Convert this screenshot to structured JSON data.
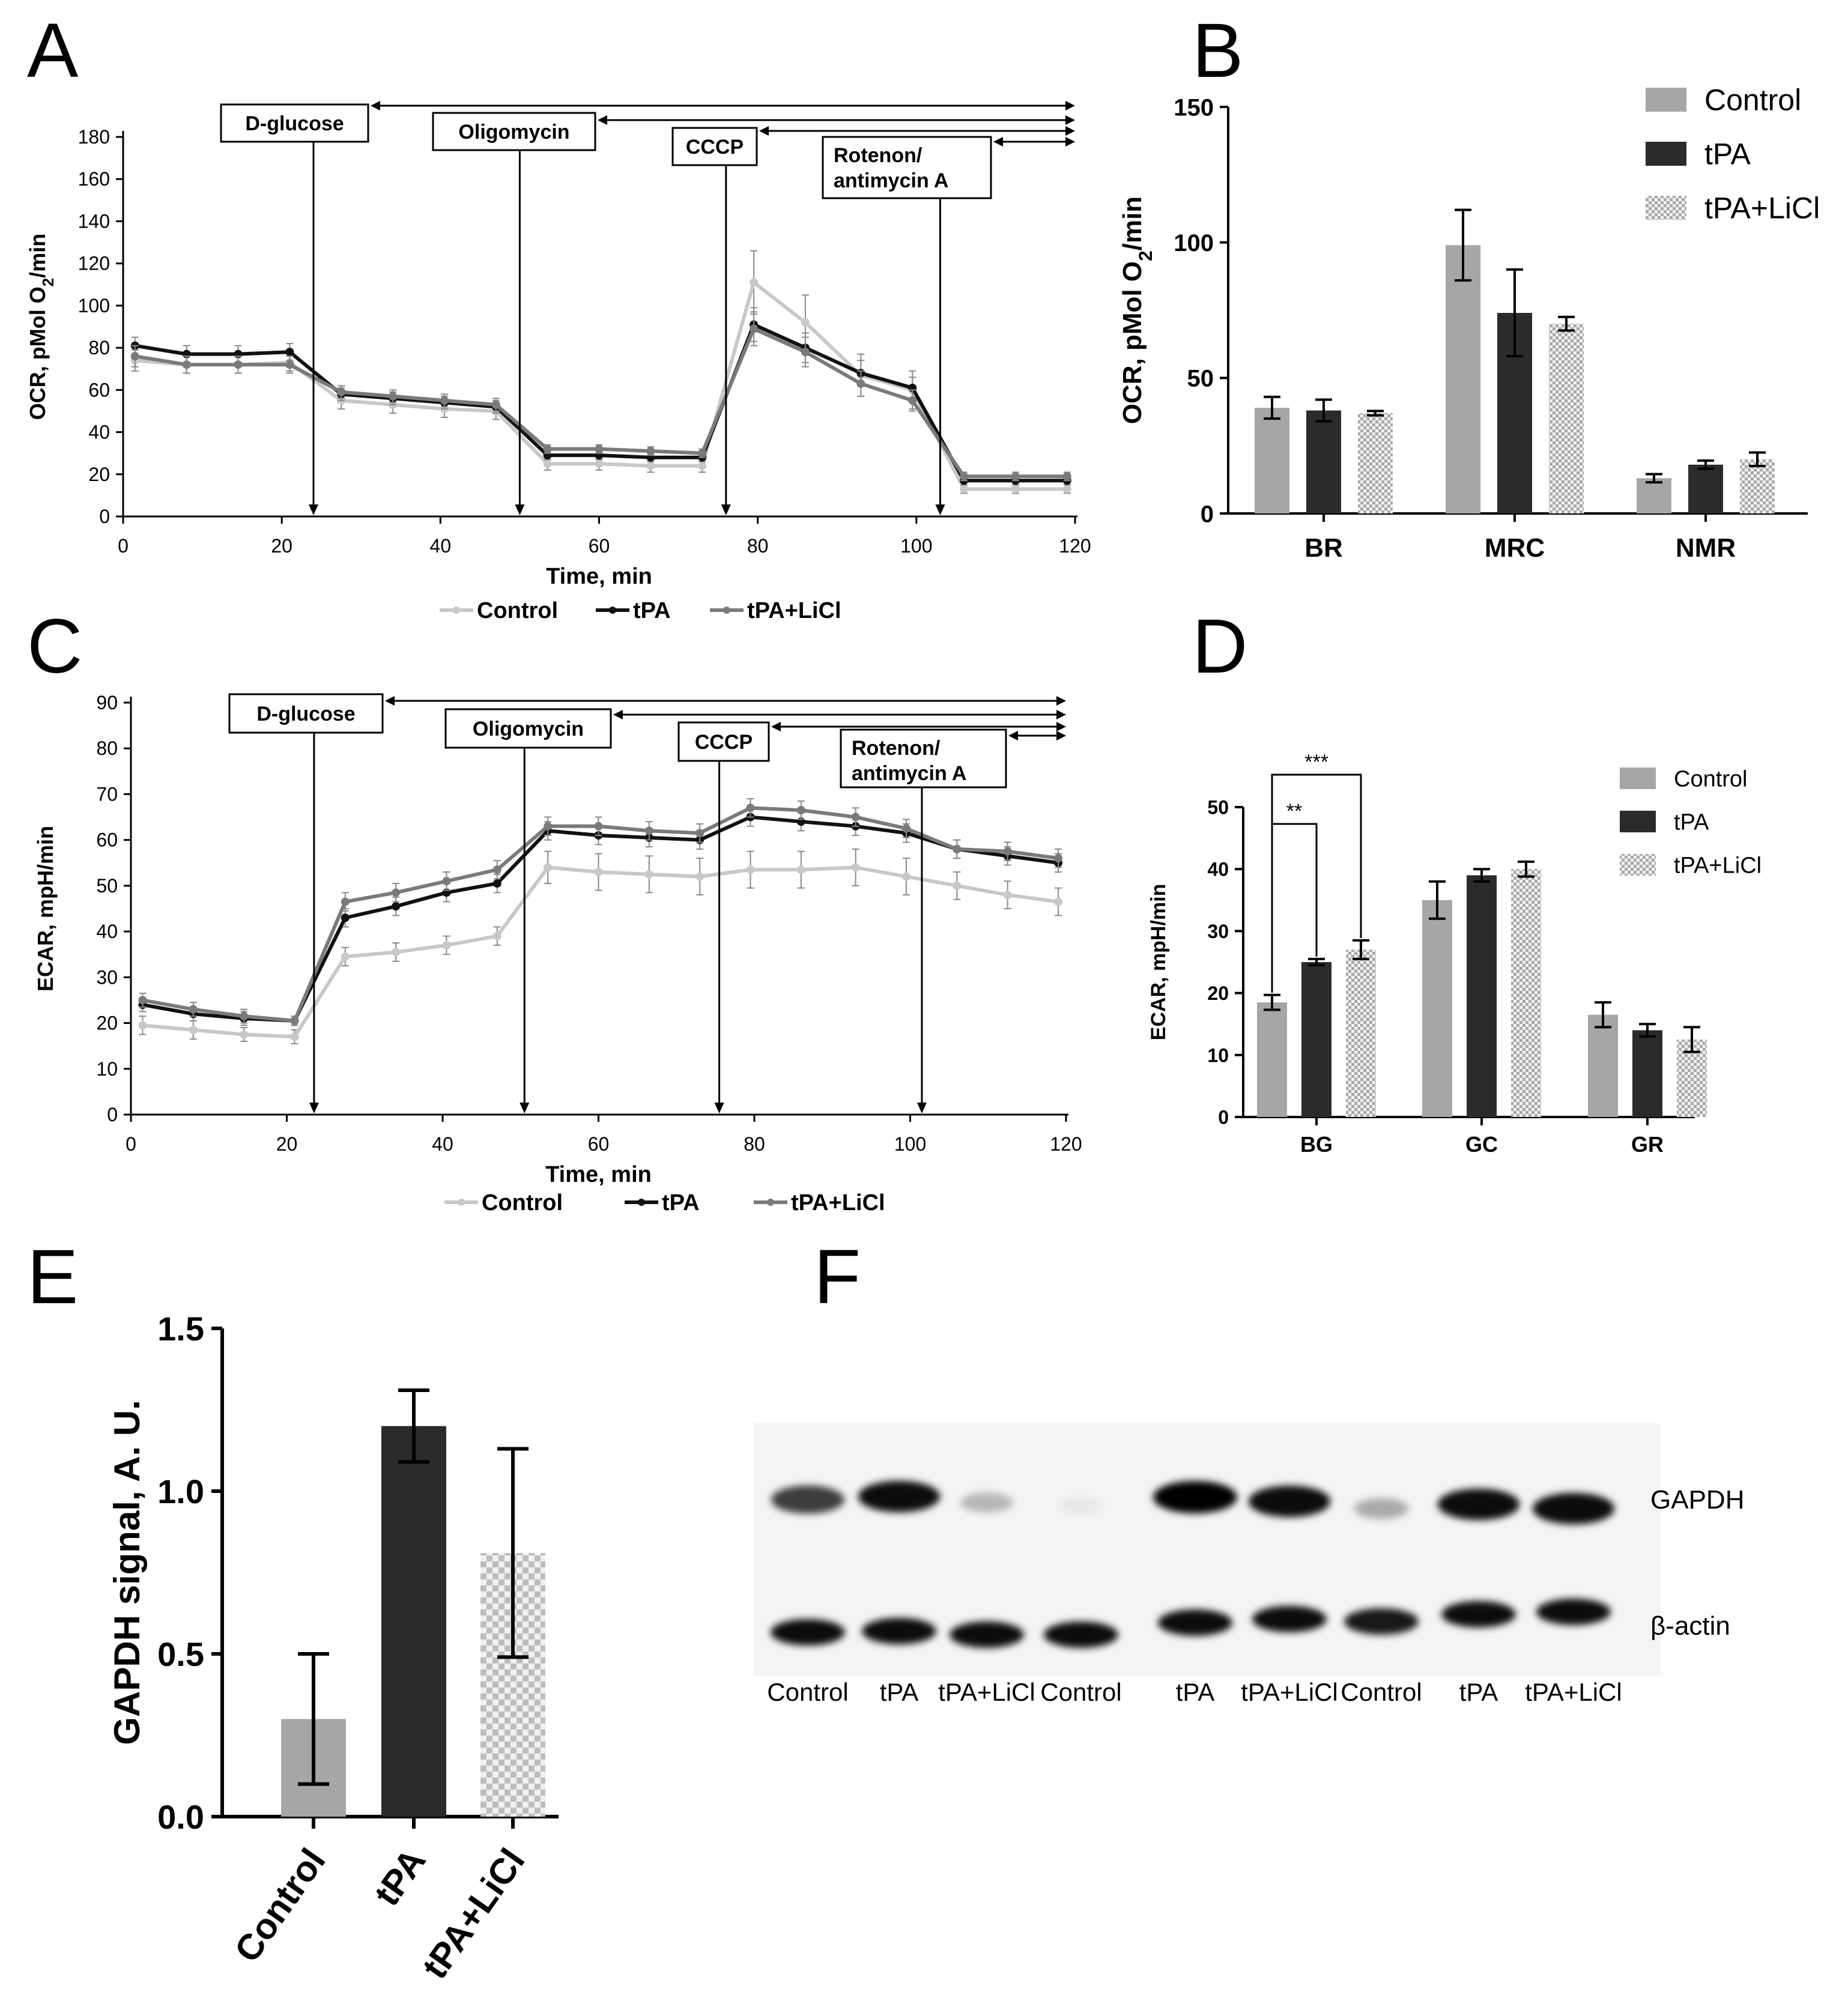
{
  "colors": {
    "control": "#c8c8c8",
    "tpa": "#111111",
    "tpa_licl": "#7a7a7a",
    "bar_control": "#a6a6a6",
    "bar_tpa": "#2b2b2b",
    "check_light": "#f2f2f2",
    "check_dark": "#a9a9a9",
    "blot_bg": "#f4f4f4"
  },
  "chart_data": [
    {
      "panel": "A",
      "panel_label": "A",
      "type": "line",
      "xlabel": "Time, min",
      "ylabel": "OCR, pMol O2/min",
      "ylabel_main": "OCR, pMol O",
      "ylabel_sub": "2",
      "ylabel_tail": "/min",
      "xlim": [
        0,
        120
      ],
      "ylim": [
        0,
        180
      ],
      "xticks": [
        0,
        20,
        40,
        60,
        80,
        100,
        120
      ],
      "yticks": [
        0,
        20,
        40,
        60,
        80,
        100,
        120,
        140,
        160,
        180
      ],
      "x": [
        1.5,
        8,
        14.5,
        21,
        27.5,
        34,
        40.5,
        47,
        53.5,
        60,
        66.5,
        73,
        79.5,
        86,
        93,
        99.5,
        106,
        112.5,
        119
      ],
      "series": [
        {
          "name": "Control",
          "key": "control",
          "values": [
            74,
            72,
            72,
            73,
            55,
            53,
            51,
            50,
            25,
            25,
            24,
            24,
            111,
            92,
            67,
            60,
            13,
            13,
            13
          ],
          "errors": [
            5,
            4,
            4,
            4,
            4,
            4,
            4,
            4,
            3,
            3,
            3,
            3,
            15,
            13,
            10,
            9,
            2,
            2,
            2
          ]
        },
        {
          "name": "tPA",
          "key": "tpa",
          "values": [
            81,
            77,
            77,
            78,
            58,
            56,
            54,
            52,
            29,
            29,
            28,
            28,
            91,
            80,
            68,
            61,
            17,
            17,
            17
          ],
          "errors": [
            4,
            4,
            4,
            4,
            3,
            3,
            3,
            3,
            2,
            2,
            2,
            2,
            8,
            7,
            6,
            5,
            2,
            2,
            2
          ]
        },
        {
          "name": "tPA+LiCl",
          "key": "tpa_licl",
          "values": [
            76,
            72,
            72,
            72,
            59,
            57,
            55,
            53,
            32,
            32,
            31,
            30,
            89,
            78,
            63,
            55,
            19,
            19,
            19
          ],
          "errors": [
            5,
            4,
            4,
            4,
            3,
            3,
            3,
            3,
            2,
            2,
            2,
            2,
            8,
            7,
            6,
            5,
            2,
            2,
            2
          ]
        }
      ],
      "injections": [
        {
          "label": "D-glucose",
          "label2": "",
          "time": 24
        },
        {
          "label": "Oligomycin",
          "label2": "",
          "time": 50
        },
        {
          "label": "CCCP",
          "label2": "",
          "time": 76
        },
        {
          "label": "Rotenon/",
          "label2": "antimycin A",
          "time": 103
        }
      ],
      "legend": [
        "Control",
        "tPA",
        "tPA+LiCl"
      ]
    },
    {
      "panel": "B",
      "panel_label": "B",
      "type": "bar",
      "ylabel": "OCR, pMol O2/min",
      "ylabel_main": "OCR, pMol O",
      "ylabel_sub": "2",
      "ylabel_tail": "/min",
      "ylim": [
        0,
        150
      ],
      "yticks": [
        0,
        50,
        100,
        150
      ],
      "categories": [
        "BR",
        "MRC",
        "NMR"
      ],
      "series": [
        {
          "name": "Control",
          "key": "control",
          "values": [
            39,
            99,
            13
          ],
          "errors": [
            4,
            13,
            1.5
          ]
        },
        {
          "name": "tPA",
          "key": "tpa",
          "values": [
            38,
            74,
            18
          ],
          "errors": [
            4,
            16,
            1.5
          ]
        },
        {
          "name": "tPA+LiCl",
          "key": "tpa_licl",
          "values": [
            37,
            70,
            20
          ],
          "errors": [
            0.8,
            2.5,
            2.5
          ]
        }
      ],
      "legend": [
        "Control",
        "tPA",
        "tPA+LiCl"
      ]
    },
    {
      "panel": "C",
      "panel_label": "C",
      "type": "line",
      "xlabel": "Time, min",
      "ylabel": "ECAR, mpH/min",
      "xlim": [
        0,
        120
      ],
      "ylim": [
        0,
        90
      ],
      "xticks": [
        0,
        20,
        40,
        60,
        80,
        100,
        120
      ],
      "yticks": [
        0,
        10,
        20,
        30,
        40,
        50,
        60,
        70,
        80,
        90
      ],
      "x": [
        1.5,
        8,
        14.5,
        21,
        27.5,
        34,
        40.5,
        47,
        53.5,
        60,
        66.5,
        73,
        79.5,
        86,
        93,
        99.5,
        106,
        112.5,
        119
      ],
      "series": [
        {
          "name": "Control",
          "key": "control",
          "values": [
            19.5,
            18.5,
            17.5,
            17,
            34.5,
            35.5,
            37,
            39,
            54,
            53,
            52.5,
            52,
            53.5,
            53.5,
            54,
            52,
            50,
            48,
            46.5
          ],
          "errors": [
            2,
            2,
            1.5,
            1.5,
            2,
            2,
            2,
            2,
            3.5,
            4,
            4,
            4,
            4,
            4,
            4,
            4,
            3,
            3,
            3
          ]
        },
        {
          "name": "tPA",
          "key": "tpa",
          "values": [
            24,
            22,
            21,
            20.5,
            43,
            45.5,
            48.5,
            50.5,
            62,
            61,
            60.5,
            60,
            65,
            64,
            63,
            61.5,
            58,
            56.5,
            55
          ],
          "errors": [
            1.5,
            1.5,
            1.5,
            1,
            2,
            2,
            2,
            2,
            2,
            2,
            2,
            2,
            2,
            2,
            2,
            2,
            2,
            2,
            2
          ]
        },
        {
          "name": "tPA+LiCl",
          "key": "tpa_licl",
          "values": [
            25,
            23,
            21.5,
            20.5,
            46.5,
            48.5,
            51,
            53.5,
            63,
            63,
            62,
            61.5,
            67,
            66.5,
            65,
            62.5,
            58,
            57.5,
            56
          ],
          "errors": [
            1.5,
            1.5,
            1.5,
            1,
            2,
            2,
            2,
            2,
            2,
            2,
            2,
            2,
            2,
            2,
            2,
            2,
            2,
            2,
            2
          ]
        }
      ],
      "injections": [
        {
          "label": "D-glucose",
          "label2": "",
          "time": 23.5
        },
        {
          "label": "Oligomycin",
          "label2": "",
          "time": 50.5
        },
        {
          "label": "CCCP",
          "label2": "",
          "time": 75.5
        },
        {
          "label": "Rotenon/",
          "label2": "antimycin A",
          "time": 101.5
        }
      ],
      "legend": [
        "Control",
        "tPA",
        "tPA+LiCl"
      ]
    },
    {
      "panel": "D",
      "panel_label": "D",
      "type": "bar",
      "ylabel": "ECAR, mpH/min",
      "ylim": [
        0,
        50
      ],
      "yticks": [
        0,
        10,
        20,
        30,
        40,
        50
      ],
      "categories": [
        "BG",
        "GC",
        "GR"
      ],
      "series": [
        {
          "name": "Control",
          "key": "control",
          "values": [
            18.5,
            35,
            16.5
          ],
          "errors": [
            1.2,
            3,
            2
          ]
        },
        {
          "name": "tPA",
          "key": "tpa",
          "values": [
            25,
            39,
            14
          ],
          "errors": [
            0.5,
            1,
            1
          ]
        },
        {
          "name": "tPA+LiCl",
          "key": "tpa_licl",
          "values": [
            27,
            40,
            12.5
          ],
          "errors": [
            1.5,
            1.2,
            2
          ]
        }
      ],
      "significance": [
        {
          "label": "**",
          "from": "Control",
          "to": "tPA",
          "category": "BG"
        },
        {
          "label": "***",
          "from": "Control",
          "to": "tPA+LiCl",
          "category": "BG"
        }
      ],
      "legend": [
        "Control",
        "tPA",
        "tPA+LiCl"
      ]
    },
    {
      "panel": "E",
      "panel_label": "E",
      "type": "bar",
      "ylabel": "GAPDH signal, A. U.",
      "ylim": [
        0,
        1.5
      ],
      "yticks": [
        "0.0",
        "0.5",
        "1.0",
        "1.5"
      ],
      "categories": [
        "Control",
        "tPA",
        "tPA+LiCl"
      ],
      "series": [
        {
          "name": "GAPDH",
          "values": [
            0.3,
            1.2,
            0.81
          ],
          "errors": [
            0.2,
            0.11,
            0.32
          ]
        }
      ]
    }
  ],
  "blot": {
    "panel_label": "F",
    "rows": [
      "GAPDH",
      "β-actin"
    ],
    "lanes": [
      "Control",
      "tPA",
      "tPA+LiCl",
      "Control",
      "tPA",
      "tPA+LiCl",
      "Control",
      "tPA",
      "tPA+LiCl"
    ],
    "gapdh_intensity": [
      0.75,
      0.95,
      0.25,
      0.05,
      1.0,
      0.95,
      0.3,
      0.95,
      0.95
    ],
    "actin_intensity": [
      0.95,
      0.95,
      0.95,
      0.95,
      0.95,
      0.95,
      0.9,
      0.95,
      0.95
    ]
  }
}
